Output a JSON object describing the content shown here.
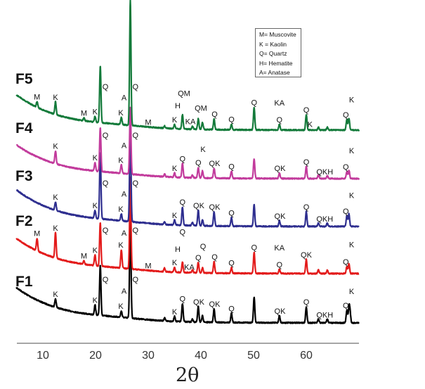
{
  "chart_data": {
    "type": "line",
    "xlabel": "2θ",
    "ylabel": "",
    "xlim": [
      5,
      70
    ],
    "xticks": [
      10,
      20,
      30,
      40,
      50,
      60
    ],
    "grid": false,
    "y_axis_shown": false,
    "legend": {
      "placement": "top-right",
      "entries": [
        "M= Muscovite",
        "K = Kaolin",
        "Q= Quartz",
        "H= Hematite",
        "A= Anatase"
      ]
    },
    "series": [
      {
        "name": "F1",
        "color": "#000000",
        "background_amplitude": 50,
        "peaks": [
          [
            12.4,
            12
          ],
          [
            19.9,
            14
          ],
          [
            20.9,
            72
          ],
          [
            24.9,
            9
          ],
          [
            26.6,
            150
          ],
          [
            33.1,
            4
          ],
          [
            35.0,
            7
          ],
          [
            36.5,
            26
          ],
          [
            38.4,
            4
          ],
          [
            39.5,
            22
          ],
          [
            40.3,
            9
          ],
          [
            42.5,
            19
          ],
          [
            45.8,
            13
          ],
          [
            50.1,
            36
          ],
          [
            54.9,
            10
          ],
          [
            60.0,
            23
          ],
          [
            62.3,
            5
          ],
          [
            64.0,
            6
          ],
          [
            67.7,
            18
          ],
          [
            68.1,
            20
          ],
          [
            68.3,
            15
          ]
        ],
        "annotations": [
          [
            12.4,
            "K"
          ],
          [
            19.9,
            "K"
          ],
          [
            21.6,
            "Q"
          ],
          [
            24.8,
            "K"
          ],
          [
            25.4,
            "A"
          ],
          [
            27.3,
            "Q"
          ],
          [
            35.0,
            "K"
          ],
          [
            36.5,
            "Q"
          ],
          [
            39.6,
            "QK"
          ],
          [
            42.6,
            "QK"
          ],
          [
            45.8,
            "Q"
          ],
          [
            55.0,
            "QK"
          ],
          [
            60.0,
            "Q"
          ],
          [
            63.5,
            "QKH"
          ],
          [
            67.5,
            "Q"
          ],
          [
            68.6,
            "K"
          ]
        ]
      },
      {
        "name": "F2",
        "color": "#e31b1b",
        "background_amplitude": 50,
        "peaks": [
          [
            8.9,
            18
          ],
          [
            12.4,
            36
          ],
          [
            17.8,
            5
          ],
          [
            19.9,
            15
          ],
          [
            20.9,
            62
          ],
          [
            24.9,
            26
          ],
          [
            26.6,
            130
          ],
          [
            33.1,
            5
          ],
          [
            35.0,
            7
          ],
          [
            36.5,
            15
          ],
          [
            38.4,
            4
          ],
          [
            39.5,
            15
          ],
          [
            40.3,
            7
          ],
          [
            42.5,
            16
          ],
          [
            45.8,
            8
          ],
          [
            50.1,
            30
          ],
          [
            54.9,
            6
          ],
          [
            60.0,
            20
          ],
          [
            62.3,
            5
          ],
          [
            64.0,
            5
          ],
          [
            67.7,
            10
          ],
          [
            68.1,
            14
          ]
        ],
        "annotations": [
          [
            8.9,
            "M"
          ],
          [
            12.4,
            "K"
          ],
          [
            17.8,
            "M"
          ],
          [
            19.9,
            "K"
          ],
          [
            21.6,
            "Q"
          ],
          [
            24.8,
            "K"
          ],
          [
            25.4,
            "A"
          ],
          [
            27.3,
            "Q"
          ],
          [
            30.0,
            "M"
          ],
          [
            35.0,
            "K"
          ],
          [
            35.6,
            "H"
          ],
          [
            36.5,
            "Q"
          ],
          [
            37.8,
            "KA"
          ],
          [
            39.5,
            "Q"
          ],
          [
            40.4,
            "Q"
          ],
          [
            42.6,
            "Q"
          ],
          [
            45.8,
            "Q"
          ],
          [
            50.1,
            "Q"
          ],
          [
            54.9,
            "Q"
          ],
          [
            54.9,
            "KA"
          ],
          [
            60.0,
            "QK"
          ],
          [
            67.5,
            "Q"
          ],
          [
            68.6,
            "K"
          ]
        ]
      },
      {
        "name": "F3",
        "color": "#2e2e8f",
        "background_amplitude": 52,
        "peaks": [
          [
            12.4,
            12
          ],
          [
            19.9,
            11
          ],
          [
            20.9,
            95
          ],
          [
            24.9,
            10
          ],
          [
            26.6,
            140
          ],
          [
            33.1,
            4
          ],
          [
            35.0,
            7
          ],
          [
            36.5,
            26
          ],
          [
            38.4,
            4
          ],
          [
            39.5,
            22
          ],
          [
            40.3,
            8
          ],
          [
            42.5,
            20
          ],
          [
            45.8,
            12
          ],
          [
            50.1,
            31
          ],
          [
            54.9,
            8
          ],
          [
            60.0,
            21
          ],
          [
            62.3,
            5
          ],
          [
            64.0,
            5
          ],
          [
            67.7,
            15
          ],
          [
            68.1,
            18
          ]
        ],
        "annotations": [
          [
            12.4,
            "K"
          ],
          [
            19.9,
            "K"
          ],
          [
            21.6,
            "Q"
          ],
          [
            24.8,
            "K"
          ],
          [
            25.4,
            "A"
          ],
          [
            27.3,
            "Q"
          ],
          [
            35.0,
            "K"
          ],
          [
            36.5,
            "Q"
          ],
          [
            39.6,
            "QK"
          ],
          [
            42.6,
            "QK"
          ],
          [
            45.8,
            "Q"
          ],
          [
            55.0,
            "QK"
          ],
          [
            60.0,
            "Q"
          ],
          [
            63.5,
            "QKH"
          ],
          [
            67.5,
            "Q"
          ],
          [
            68.6,
            "K"
          ]
        ]
      },
      {
        "name": "F4",
        "color": "#c23b9c",
        "background_amplitude": 48,
        "peaks": [
          [
            12.4,
            18
          ],
          [
            19.9,
            12
          ],
          [
            20.9,
            62
          ],
          [
            24.9,
            12
          ],
          [
            26.6,
            95
          ],
          [
            33.1,
            4
          ],
          [
            35.0,
            6
          ],
          [
            36.5,
            20
          ],
          [
            38.4,
            4
          ],
          [
            39.5,
            15
          ],
          [
            40.3,
            10
          ],
          [
            42.5,
            14
          ],
          [
            45.8,
            10
          ],
          [
            50.1,
            28
          ],
          [
            54.9,
            8
          ],
          [
            60.0,
            17
          ],
          [
            62.3,
            5
          ],
          [
            64.0,
            4
          ],
          [
            67.7,
            10
          ],
          [
            68.1,
            12
          ]
        ],
        "annotations": [
          [
            12.4,
            "K"
          ],
          [
            19.9,
            "K"
          ],
          [
            21.6,
            "Q"
          ],
          [
            24.8,
            "K"
          ],
          [
            25.4,
            "A"
          ],
          [
            27.3,
            "Q"
          ],
          [
            35.0,
            "K"
          ],
          [
            36.5,
            "Q"
          ],
          [
            39.5,
            "Q"
          ],
          [
            40.4,
            "K"
          ],
          [
            42.6,
            "QK"
          ],
          [
            45.8,
            "Q"
          ],
          [
            55.0,
            "QK"
          ],
          [
            60.0,
            "Q"
          ],
          [
            63.5,
            "QKH"
          ],
          [
            67.5,
            "Q"
          ],
          [
            68.6,
            "K"
          ]
        ]
      },
      {
        "name": "F5",
        "color": "#137a3a",
        "background_amplitude": 50,
        "peaks": [
          [
            8.9,
            8
          ],
          [
            12.4,
            18
          ],
          [
            17.8,
            4
          ],
          [
            19.9,
            8
          ],
          [
            20.9,
            80
          ],
          [
            24.9,
            10
          ],
          [
            26.6,
            178
          ],
          [
            33.1,
            3
          ],
          [
            35.0,
            6
          ],
          [
            36.5,
            20
          ],
          [
            38.4,
            4
          ],
          [
            39.5,
            15
          ],
          [
            40.3,
            10
          ],
          [
            42.5,
            15
          ],
          [
            45.8,
            8
          ],
          [
            50.1,
            32
          ],
          [
            54.9,
            8
          ],
          [
            60.0,
            22
          ],
          [
            62.3,
            4
          ],
          [
            64.0,
            4
          ],
          [
            67.7,
            15
          ],
          [
            68.1,
            17
          ]
        ],
        "annotations": [
          [
            8.9,
            "M"
          ],
          [
            12.4,
            "K"
          ],
          [
            17.8,
            "M"
          ],
          [
            19.9,
            "K"
          ],
          [
            21.6,
            "Q"
          ],
          [
            24.8,
            "K"
          ],
          [
            25.4,
            "A"
          ],
          [
            27.3,
            "Q"
          ],
          [
            30.0,
            "M"
          ],
          [
            35.0,
            "K"
          ],
          [
            35.6,
            "H"
          ],
          [
            36.8,
            "QM"
          ],
          [
            38.0,
            "KA"
          ],
          [
            40.0,
            "QM"
          ],
          [
            42.6,
            "Q"
          ],
          [
            45.8,
            "Q"
          ],
          [
            50.1,
            "Q"
          ],
          [
            54.9,
            "Q"
          ],
          [
            54.9,
            "KA"
          ],
          [
            60.0,
            "Q"
          ],
          [
            60.7,
            "K"
          ],
          [
            67.5,
            "Q"
          ],
          [
            68.6,
            "K"
          ]
        ]
      }
    ]
  }
}
